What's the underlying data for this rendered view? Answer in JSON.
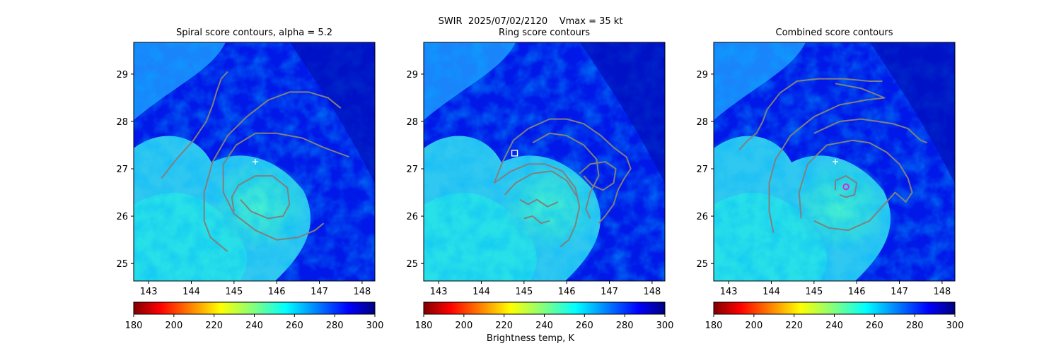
{
  "figure": {
    "suptitle": "SWIR  2025/07/02/2120    Vmax = 35 kt",
    "colorbar_label": "Brightness temp, K"
  },
  "chart_data": [
    {
      "type": "heatmap",
      "title": "Spiral score contours, alpha =  5.2",
      "xlim": [
        142.65,
        148.3
      ],
      "ylim": [
        24.63,
        29.67
      ],
      "xticks": [
        143,
        144,
        145,
        146,
        147,
        148
      ],
      "yticks": [
        25,
        26,
        27,
        28,
        29
      ],
      "colorbar": {
        "ticks": [
          180,
          200,
          220,
          240,
          260,
          280,
          300
        ],
        "range": [
          180,
          300
        ],
        "colormap": "jet_r"
      },
      "markers": [
        {
          "type": "plus",
          "x": 145.5,
          "y": 27.15,
          "color": "#ffffff"
        }
      ],
      "contours": [
        {
          "color": "#808080",
          "points": [
            [
              145.0,
              26.1
            ],
            [
              144.95,
              26.4
            ],
            [
              145.1,
              26.65
            ],
            [
              145.5,
              26.85
            ],
            [
              145.9,
              26.85
            ],
            [
              146.25,
              26.6
            ],
            [
              146.3,
              26.25
            ],
            [
              146.15,
              26.0
            ],
            [
              145.8,
              25.95
            ],
            [
              145.4,
              26.1
            ],
            [
              145.15,
              26.35
            ]
          ]
        },
        {
          "color": "#808080",
          "points": [
            [
              144.85,
              25.25
            ],
            [
              144.45,
              25.55
            ],
            [
              144.3,
              25.9
            ],
            [
              144.3,
              26.5
            ],
            [
              144.5,
              27.15
            ],
            [
              144.85,
              27.7
            ],
            [
              145.3,
              28.1
            ],
            [
              145.8,
              28.45
            ],
            [
              146.3,
              28.62
            ],
            [
              146.75,
              28.62
            ],
            [
              147.2,
              28.5
            ],
            [
              147.5,
              28.28
            ]
          ]
        },
        {
          "color": "#808080",
          "points": [
            [
              147.7,
              27.25
            ],
            [
              147.1,
              27.45
            ],
            [
              146.6,
              27.65
            ],
            [
              146.0,
              27.75
            ],
            [
              145.5,
              27.75
            ],
            [
              145.05,
              27.5
            ],
            [
              144.75,
              27.1
            ],
            [
              144.75,
              26.5
            ],
            [
              145.0,
              26.05
            ],
            [
              145.5,
              25.7
            ],
            [
              146.0,
              25.5
            ],
            [
              146.5,
              25.55
            ],
            [
              146.9,
              25.7
            ],
            [
              147.1,
              25.85
            ]
          ]
        },
        {
          "color": "#808080",
          "points": [
            [
              143.3,
              26.8
            ],
            [
              143.65,
              27.2
            ],
            [
              144.05,
              27.6
            ],
            [
              144.35,
              28.0
            ],
            [
              144.5,
              28.35
            ],
            [
              144.6,
              28.65
            ],
            [
              144.7,
              28.9
            ],
            [
              144.85,
              29.05
            ]
          ]
        }
      ]
    },
    {
      "type": "heatmap",
      "title": "Ring score contours",
      "xlim": [
        142.65,
        148.3
      ],
      "ylim": [
        24.63,
        29.67
      ],
      "xticks": [
        143,
        144,
        145,
        146,
        147,
        148
      ],
      "yticks": [
        25,
        26,
        27,
        28,
        29
      ],
      "colorbar": {
        "ticks": [
          180,
          200,
          220,
          240,
          260,
          280,
          300
        ],
        "range": [
          180,
          300
        ],
        "colormap": "jet_r"
      },
      "markers": [
        {
          "type": "square",
          "x": 144.78,
          "y": 27.33,
          "color": "#ffffff"
        }
      ],
      "contours": [
        {
          "color": "#808080",
          "points": [
            [
              144.3,
              26.7
            ],
            [
              144.5,
              27.15
            ],
            [
              144.75,
              27.6
            ],
            [
              145.1,
              27.85
            ],
            [
              145.6,
              28.05
            ],
            [
              146.0,
              28.05
            ],
            [
              146.4,
              27.95
            ],
            [
              146.8,
              27.7
            ],
            [
              147.1,
              27.45
            ],
            [
              147.4,
              27.25
            ],
            [
              147.5,
              27.0
            ],
            [
              147.35,
              26.8
            ],
            [
              147.2,
              26.55
            ],
            [
              147.1,
              26.25
            ],
            [
              146.9,
              26.0
            ],
            [
              146.75,
              25.85
            ]
          ]
        },
        {
          "color": "#808080",
          "points": [
            [
              144.3,
              26.7
            ],
            [
              144.7,
              26.95
            ],
            [
              145.1,
              27.1
            ],
            [
              145.5,
              27.1
            ],
            [
              145.9,
              26.95
            ],
            [
              146.2,
              26.6
            ],
            [
              146.3,
              26.2
            ],
            [
              146.2,
              25.8
            ],
            [
              146.05,
              25.5
            ],
            [
              145.85,
              25.35
            ]
          ]
        },
        {
          "color": "#808080",
          "points": [
            [
              145.2,
              27.55
            ],
            [
              145.6,
              27.75
            ],
            [
              146.0,
              27.7
            ],
            [
              146.4,
              27.5
            ],
            [
              146.7,
              27.2
            ],
            [
              146.75,
              26.85
            ],
            [
              146.55,
              26.5
            ],
            [
              146.45,
              26.15
            ],
            [
              146.55,
              25.95
            ]
          ]
        },
        {
          "color": "#808080",
          "points": [
            [
              144.55,
              26.45
            ],
            [
              144.8,
              26.7
            ],
            [
              145.2,
              26.9
            ],
            [
              145.65,
              26.95
            ],
            [
              146.0,
              26.75
            ],
            [
              146.25,
              26.4
            ]
          ]
        },
        {
          "color": "#808080",
          "points": [
            [
              144.9,
              26.35
            ],
            [
              145.1,
              26.25
            ],
            [
              145.3,
              26.35
            ],
            [
              145.55,
              26.2
            ],
            [
              145.8,
              26.3
            ]
          ]
        },
        {
          "color": "#808080",
          "points": [
            [
              145.0,
              25.95
            ],
            [
              145.2,
              26.0
            ],
            [
              145.4,
              25.85
            ],
            [
              145.6,
              25.9
            ]
          ]
        },
        {
          "color": "#808080",
          "points": [
            [
              146.3,
              26.9
            ],
            [
              146.55,
              27.1
            ],
            [
              146.9,
              27.15
            ],
            [
              147.15,
              27.0
            ],
            [
              147.1,
              26.7
            ],
            [
              146.85,
              26.55
            ],
            [
              146.6,
              26.65
            ],
            [
              146.4,
              26.85
            ]
          ]
        }
      ]
    },
    {
      "type": "heatmap",
      "title": "Combined score contours",
      "xlim": [
        142.65,
        148.3
      ],
      "ylim": [
        24.63,
        29.67
      ],
      "xticks": [
        143,
        144,
        145,
        146,
        147,
        148
      ],
      "yticks": [
        25,
        26,
        27,
        28,
        29
      ],
      "colorbar": {
        "ticks": [
          180,
          200,
          220,
          240,
          260,
          280,
          300
        ],
        "range": [
          180,
          300
        ],
        "colormap": "jet_r"
      },
      "markers": [
        {
          "type": "plus",
          "x": 145.5,
          "y": 27.15,
          "color": "#ffffff"
        },
        {
          "type": "circle",
          "x": 145.75,
          "y": 26.62,
          "color": "#cc33cc"
        }
      ],
      "contours": [
        {
          "color": "#808080",
          "points": [
            [
              145.5,
              26.55
            ],
            [
              145.5,
              26.75
            ],
            [
              145.75,
              26.85
            ],
            [
              146.0,
              26.7
            ],
            [
              145.95,
              26.45
            ],
            [
              145.75,
              26.4
            ],
            [
              145.6,
              26.45
            ]
          ]
        },
        {
          "color": "#808080",
          "points": [
            [
              144.05,
              25.65
            ],
            [
              143.95,
              26.1
            ],
            [
              143.95,
              26.7
            ],
            [
              144.1,
              27.2
            ],
            [
              144.45,
              27.7
            ],
            [
              145.0,
              28.1
            ],
            [
              145.6,
              28.35
            ],
            [
              146.2,
              28.45
            ],
            [
              146.65,
              28.5
            ],
            [
              146.1,
              28.7
            ],
            [
              145.5,
              28.8
            ]
          ]
        },
        {
          "color": "#808080",
          "points": [
            [
              144.7,
              25.95
            ],
            [
              144.65,
              26.5
            ],
            [
              144.85,
              27.1
            ],
            [
              145.3,
              27.5
            ],
            [
              145.9,
              27.6
            ],
            [
              146.3,
              27.55
            ],
            [
              146.7,
              27.35
            ],
            [
              147.0,
              27.1
            ],
            [
              147.2,
              26.8
            ],
            [
              147.3,
              26.5
            ],
            [
              147.15,
              26.3
            ],
            [
              146.9,
              26.5
            ],
            [
              146.6,
              26.2
            ],
            [
              146.3,
              25.9
            ],
            [
              145.8,
              25.7
            ],
            [
              145.35,
              25.75
            ],
            [
              145.0,
              25.9
            ]
          ]
        },
        {
          "color": "#808080",
          "points": [
            [
              145.0,
              27.75
            ],
            [
              145.6,
              28.0
            ],
            [
              146.1,
              28.05
            ],
            [
              146.5,
              28.0
            ],
            [
              146.85,
              27.95
            ],
            [
              147.2,
              27.85
            ],
            [
              147.5,
              27.6
            ],
            [
              147.65,
              27.55
            ]
          ]
        },
        {
          "color": "#808080",
          "points": [
            [
              143.25,
              27.4
            ],
            [
              143.45,
              27.6
            ],
            [
              143.65,
              27.75
            ],
            [
              143.8,
              28.0
            ],
            [
              143.9,
              28.25
            ],
            [
              144.2,
              28.6
            ],
            [
              144.6,
              28.85
            ],
            [
              145.1,
              28.9
            ],
            [
              145.7,
              28.9
            ],
            [
              146.3,
              28.85
            ],
            [
              146.6,
              28.85
            ]
          ]
        }
      ]
    }
  ]
}
